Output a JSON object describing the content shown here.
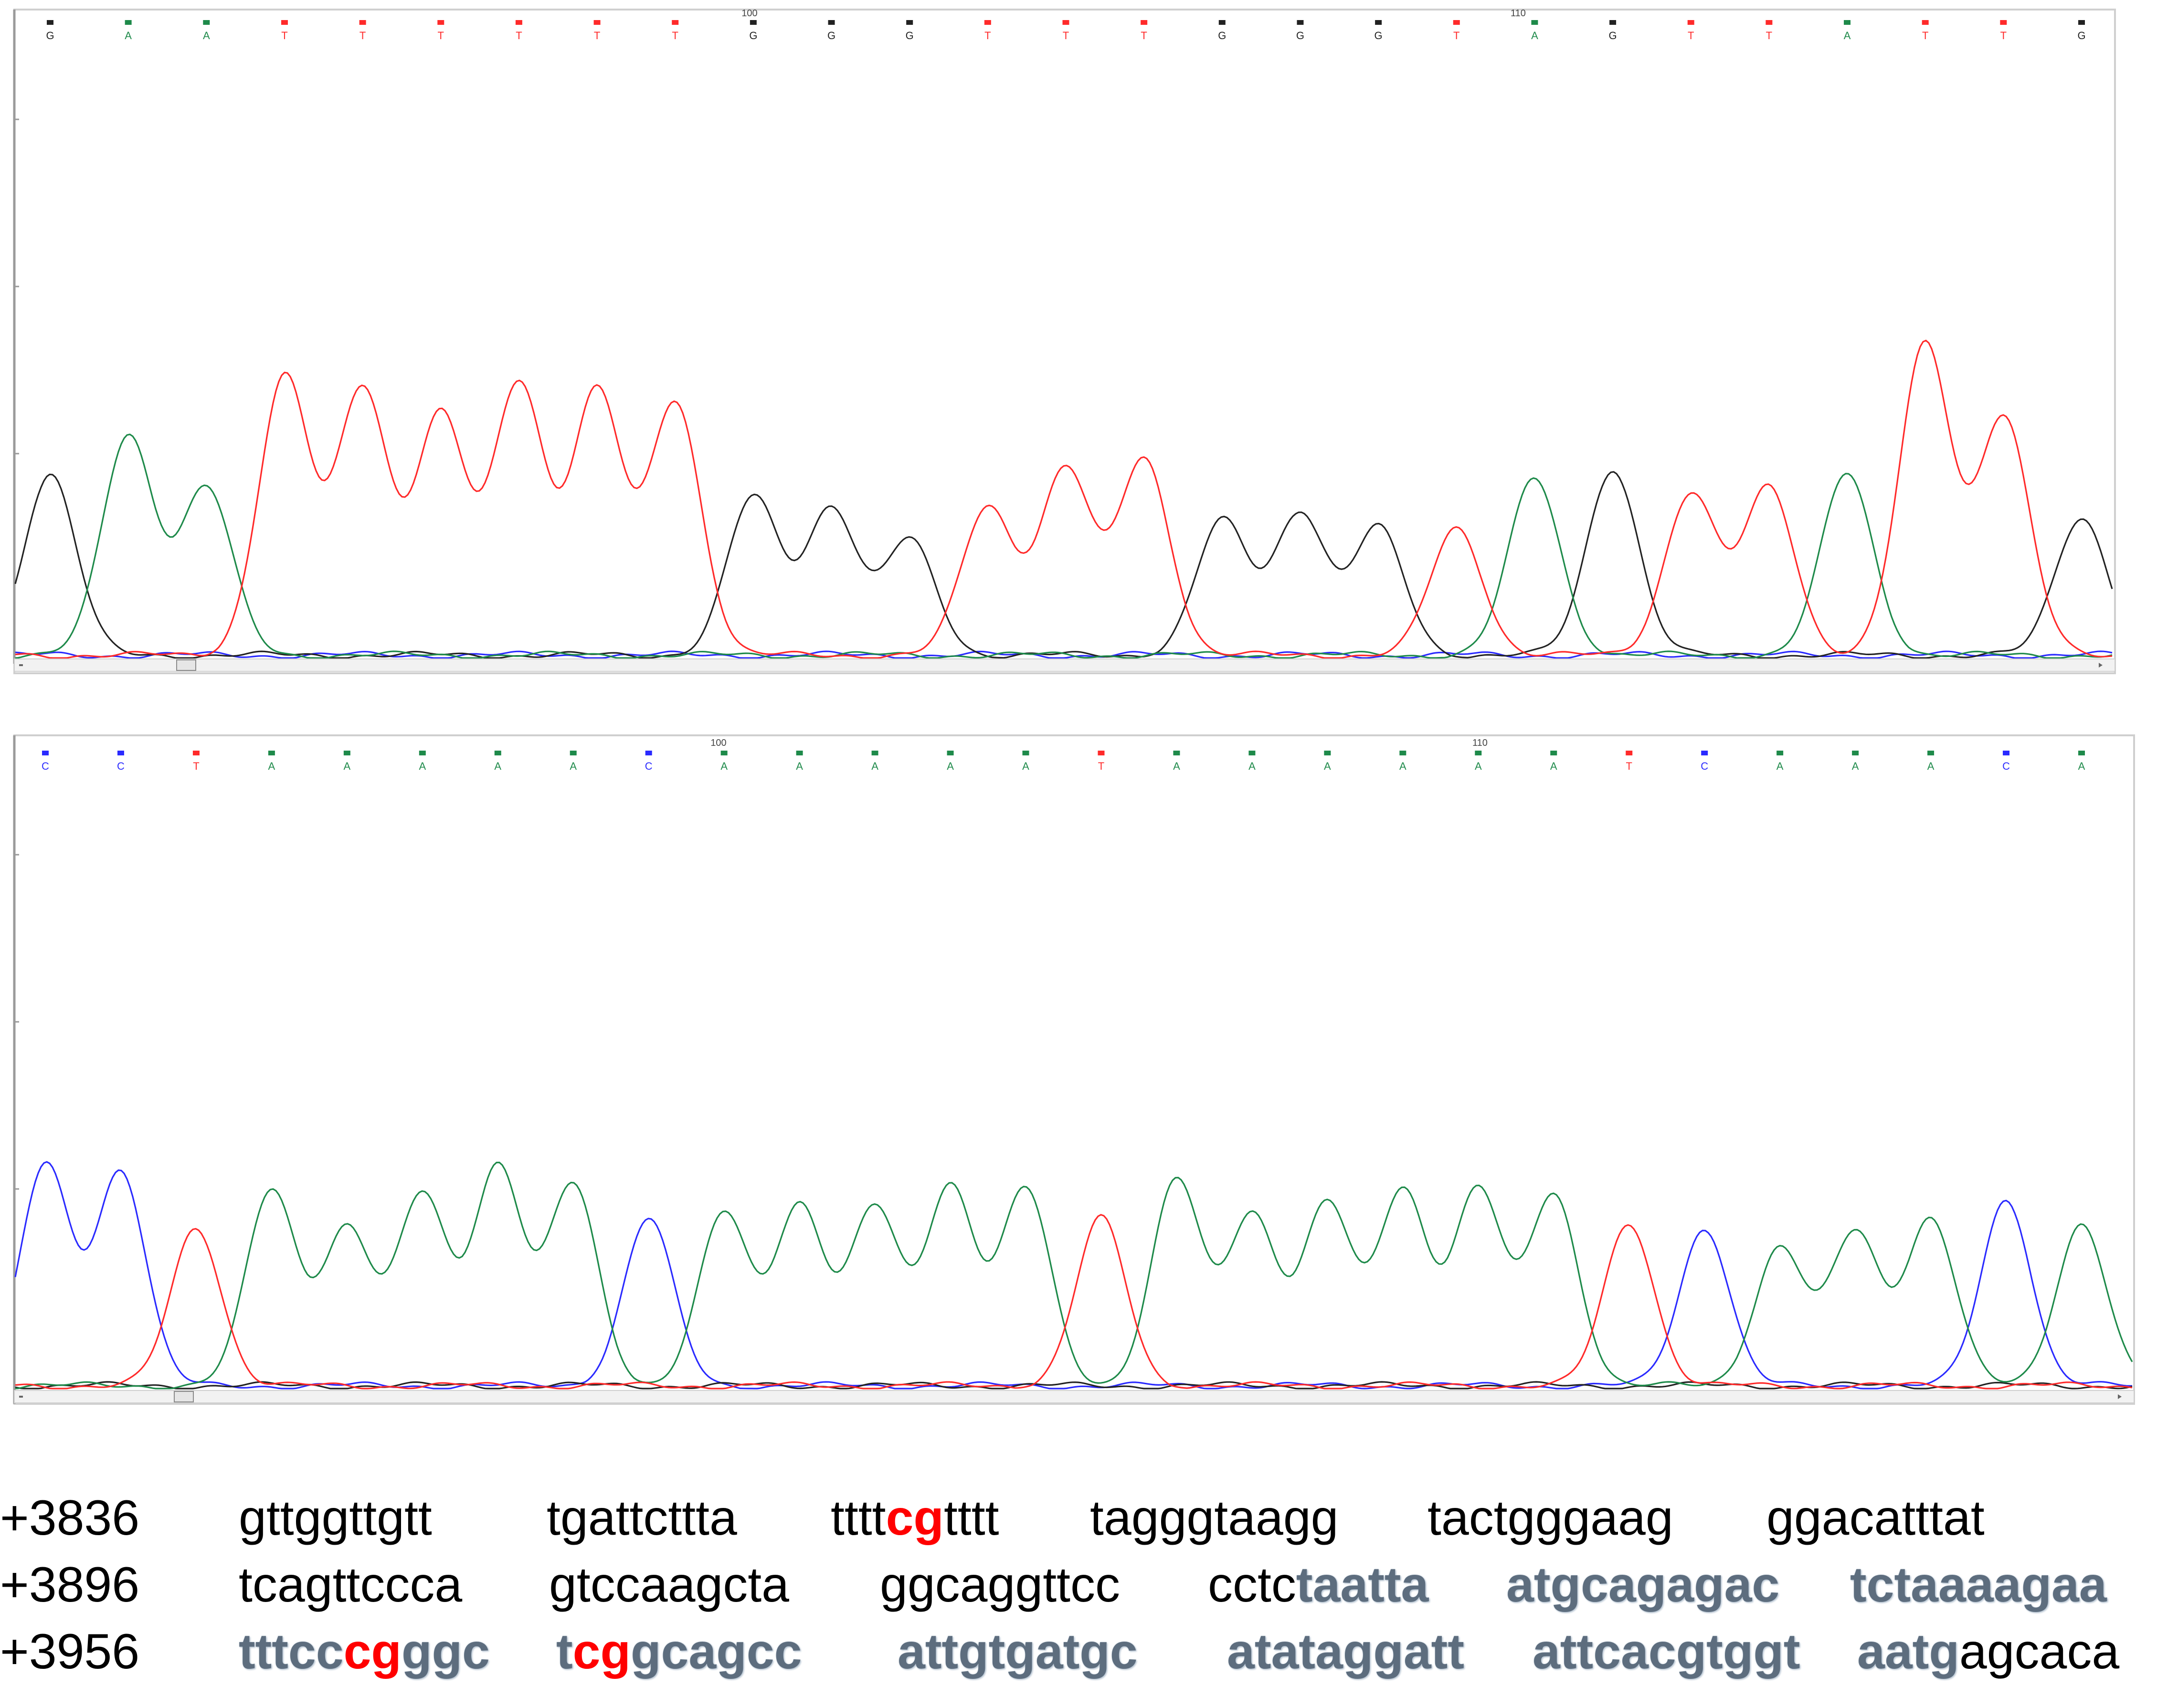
{
  "colors": {
    "A": "#1e8a4a",
    "T": "#ff2a2a",
    "G": "#222222",
    "C": "#2a2aff",
    "cpg": "#ff0000",
    "primer": "#5d6d7e"
  },
  "chromatograms": [
    {
      "bases": [
        "G",
        "A",
        "A",
        "T",
        "T",
        "T",
        "T",
        "T",
        "T",
        "G",
        "G",
        "G",
        "T",
        "T",
        "T",
        "G",
        "G",
        "G",
        "T",
        "A",
        "G",
        "T",
        "T",
        "A",
        "T",
        "T",
        "G"
      ],
      "ruler_marks": [
        "100",
        "110"
      ]
    },
    {
      "bases": [
        "C",
        "C",
        "T",
        "A",
        "A",
        "A",
        "A",
        "A",
        "C",
        "A",
        "A",
        "A",
        "A",
        "A",
        "T",
        "A",
        "A",
        "A",
        "A",
        "A",
        "A",
        "T",
        "C",
        "A",
        "A",
        "A",
        "C",
        "A"
      ],
      "ruler_marks": [
        "100",
        "110"
      ]
    }
  ],
  "sequence": {
    "lines": [
      {
        "position": "+3836",
        "groups": [
          [
            {
              "text": "gttggttgtt",
              "style": "normal"
            }
          ],
          [
            {
              "text": "tgattcttta",
              "style": "normal"
            }
          ],
          [
            {
              "text": "tttt",
              "style": "normal"
            },
            {
              "text": "cg",
              "style": "cpg"
            },
            {
              "text": "tttt",
              "style": "normal"
            }
          ],
          [
            {
              "text": "tagggtaagg",
              "style": "normal"
            }
          ],
          [
            {
              "text": "tactgggaag",
              "style": "normal"
            }
          ],
          [
            {
              "text": "ggacatttat",
              "style": "normal"
            }
          ]
        ]
      },
      {
        "position": "+3896",
        "groups": [
          [
            {
              "text": "tcagttccca",
              "style": "normal"
            }
          ],
          [
            {
              "text": "gtccaagcta",
              "style": "normal"
            }
          ],
          [
            {
              "text": "ggcaggttcc",
              "style": "normal"
            }
          ],
          [
            {
              "text": "cctc",
              "style": "normal"
            },
            {
              "text": "taatta",
              "style": "primer"
            }
          ],
          [
            {
              "text": "atgcagagac",
              "style": "primer"
            }
          ],
          [
            {
              "text": "tctaaaagaa",
              "style": "primer"
            }
          ]
        ]
      },
      {
        "position": "+3956",
        "groups": [
          [
            {
              "text": "tttcc",
              "style": "primer"
            },
            {
              "text": "cg",
              "style": "cpg"
            },
            {
              "text": "ggc",
              "style": "primer"
            }
          ],
          [
            {
              "text": "t",
              "style": "primer"
            },
            {
              "text": "cg",
              "style": "cpg"
            },
            {
              "text": "gcagcc",
              "style": "primer"
            }
          ],
          [
            {
              "text": "attgtgatgc",
              "style": "primer"
            }
          ],
          [
            {
              "text": "atataggatt",
              "style": "primer"
            }
          ],
          [
            {
              "text": "attcacgtggt",
              "style": "primer"
            }
          ],
          [
            {
              "text": "aatg",
              "style": "primer"
            },
            {
              "text": "agcaca",
              "style": "normal"
            }
          ]
        ]
      }
    ]
  }
}
